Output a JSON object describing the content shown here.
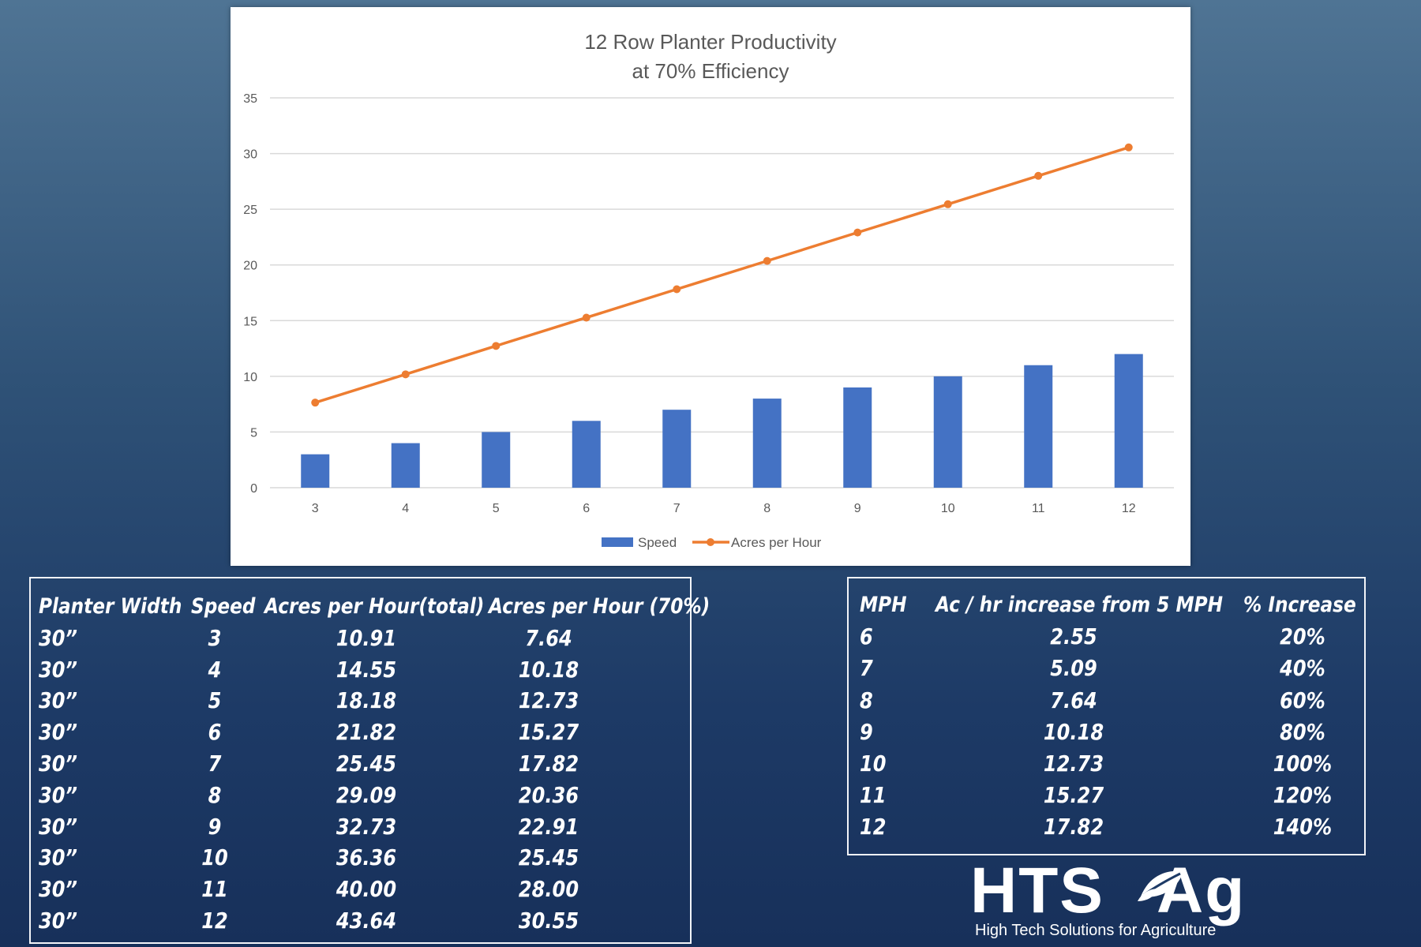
{
  "chart_data": {
    "type": "bar",
    "title": "12 Row Planter Productivity",
    "subtitle": "at 70% Efficiency",
    "categories": [
      "3",
      "4",
      "5",
      "6",
      "7",
      "8",
      "9",
      "10",
      "11",
      "12"
    ],
    "series": [
      {
        "name": "Speed",
        "type": "bar",
        "color": "#4472c4",
        "values": [
          3,
          4,
          5,
          6,
          7,
          8,
          9,
          10,
          11,
          12
        ]
      },
      {
        "name": "Acres per Hour",
        "type": "line",
        "color": "#ed7d31",
        "values": [
          7.64,
          10.18,
          12.73,
          15.27,
          17.82,
          20.36,
          22.91,
          25.45,
          28.0,
          30.55
        ]
      }
    ],
    "ylim": [
      0,
      35
    ],
    "yticks": [
      0,
      5,
      10,
      15,
      20,
      25,
      30,
      35
    ],
    "grid": true,
    "legend": "bottom"
  },
  "speed_table": {
    "headers": [
      "Planter Width",
      "Speed",
      "Acres per Hour(total)",
      "Acres per Hour (70%)"
    ],
    "rows": [
      [
        "30”",
        "3",
        "10.91",
        "7.64"
      ],
      [
        "30”",
        "4",
        "14.55",
        "10.18"
      ],
      [
        "30”",
        "5",
        "18.18",
        "12.73"
      ],
      [
        "30”",
        "6",
        "21.82",
        "15.27"
      ],
      [
        "30”",
        "7",
        "25.45",
        "17.82"
      ],
      [
        "30”",
        "8",
        "29.09",
        "20.36"
      ],
      [
        "30”",
        "9",
        "32.73",
        "22.91"
      ],
      [
        "30”",
        "10",
        "36.36",
        "25.45"
      ],
      [
        "30”",
        "11",
        "40.00",
        "28.00"
      ],
      [
        "30”",
        "12",
        "43.64",
        "30.55"
      ]
    ]
  },
  "increase_table": {
    "headers": [
      "MPH",
      "Ac / hr increase from 5 MPH",
      "% Increase"
    ],
    "rows": [
      [
        "6",
        "2.55",
        "20%"
      ],
      [
        "7",
        "5.09",
        "40%"
      ],
      [
        "8",
        "7.64",
        "60%"
      ],
      [
        "9",
        "10.18",
        "80%"
      ],
      [
        "10",
        "12.73",
        "100%"
      ],
      [
        "11",
        "15.27",
        "120%"
      ],
      [
        "12",
        "17.82",
        "140%"
      ]
    ]
  },
  "logo": {
    "main": "HTS Ag",
    "left": "HTS",
    "right": "Ag",
    "tagline": "High Tech Solutions for Agriculture"
  }
}
